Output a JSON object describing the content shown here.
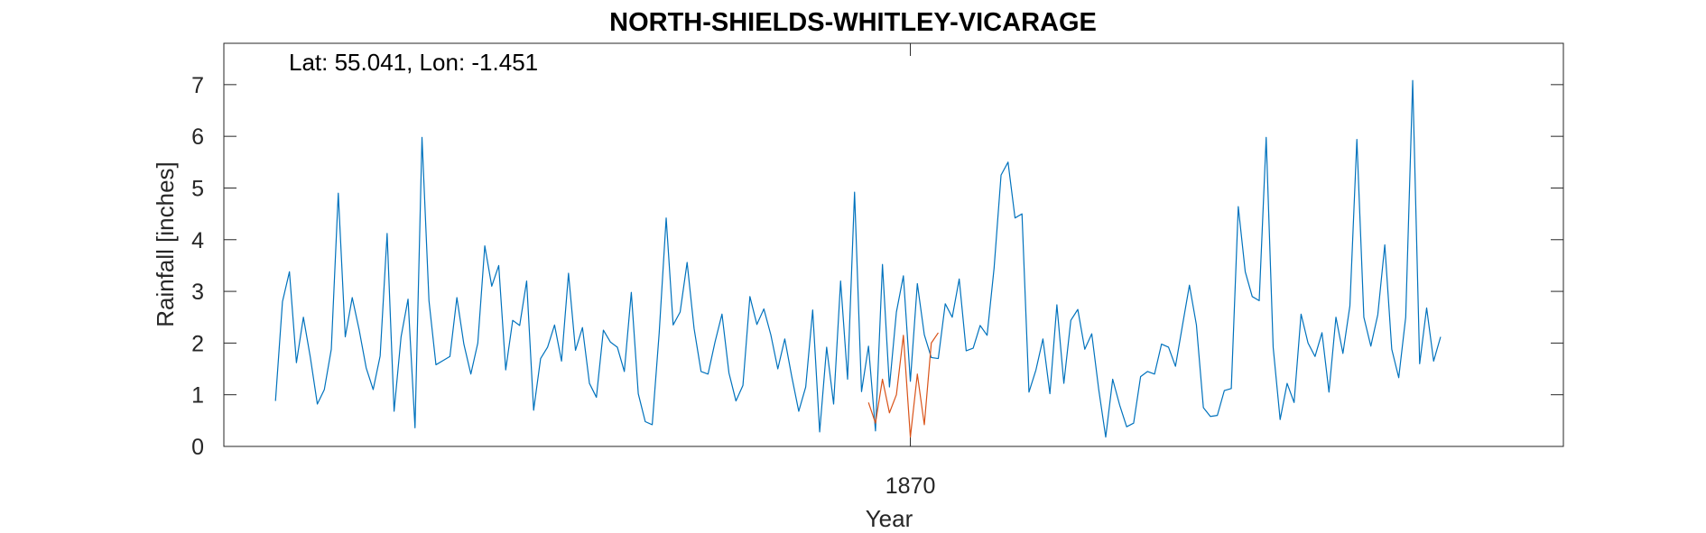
{
  "chart_data": {
    "type": "line",
    "title": "NORTH-SHIELDS-WHITLEY-VICARAGE",
    "xlabel": "Year",
    "ylabel": "Rainfall [inches]",
    "annotation": "Lat: 55.041, Lon: -1.451",
    "xlim": [
      1861.8,
      1877.8
    ],
    "ylim": [
      0,
      7.8
    ],
    "x_ticks": [
      1870
    ],
    "x_tick_labels": [
      "1870"
    ],
    "y_ticks": [
      0,
      1,
      2,
      3,
      4,
      5,
      6,
      7
    ],
    "y_tick_labels": [
      "0",
      "1",
      "2",
      "3",
      "4",
      "5",
      "6",
      "7"
    ],
    "grid": false,
    "colors": {
      "series_1": "#0072BD",
      "series_2": "#D95319"
    },
    "series": [
      {
        "x_start": 1862.4167,
        "x_step": 0.0833333,
        "values": [
          0.88,
          2.8,
          3.38,
          1.62,
          2.5,
          1.72,
          0.82,
          1.1,
          1.88,
          4.9,
          2.12,
          2.88,
          2.25,
          1.52,
          1.1,
          1.75,
          4.12,
          0.68,
          2.12,
          2.85,
          0.36,
          5.98,
          2.82,
          1.58,
          1.66,
          1.74,
          2.88,
          1.98,
          1.4,
          2.0,
          3.88,
          3.1,
          3.5,
          1.48,
          2.44,
          2.34,
          3.2,
          0.7,
          1.7,
          1.92,
          2.35,
          1.65,
          3.35,
          1.86,
          2.3,
          1.22,
          0.95,
          2.25,
          2.02,
          1.92,
          1.45,
          2.98,
          1.02,
          0.48,
          0.42,
          2.2,
          4.42,
          2.35,
          2.6,
          3.56,
          2.28,
          1.45,
          1.4,
          2.02,
          2.56,
          1.42,
          0.88,
          1.18,
          2.9,
          2.36,
          2.66,
          2.16,
          1.5,
          2.08,
          1.35,
          0.68,
          1.15,
          2.64,
          0.28,
          1.92,
          0.82,
          3.2,
          1.3,
          4.92,
          1.06,
          1.94,
          0.3,
          3.52,
          1.15,
          2.6,
          3.3,
          1.26,
          3.15,
          2.16,
          1.72,
          1.7,
          2.76,
          2.5,
          3.24,
          1.85,
          1.9,
          2.34,
          2.15,
          3.45,
          5.25,
          5.5,
          4.42,
          4.5,
          1.05,
          1.48,
          2.08,
          1.02,
          2.74,
          1.22,
          2.44,
          2.65,
          1.88,
          2.18,
          1.1,
          0.18,
          1.3,
          0.8,
          0.38,
          0.45,
          1.35,
          1.45,
          1.4,
          1.98,
          1.92,
          1.55,
          2.34,
          3.12,
          2.35,
          0.75,
          0.58,
          0.6,
          1.08,
          1.12,
          4.64,
          3.38,
          2.9,
          2.82,
          5.98,
          1.92,
          0.52,
          1.22,
          0.85,
          2.56,
          2.0,
          1.74,
          2.2,
          1.05,
          2.5,
          1.8,
          2.72,
          5.94,
          2.5,
          1.94,
          2.55,
          3.9,
          1.88,
          1.33,
          2.5,
          7.08,
          1.6,
          2.68,
          1.65,
          2.12
        ]
      },
      {
        "x_start": 1869.5,
        "x_step": 0.0833333,
        "values": [
          0.85,
          0.45,
          1.3,
          0.65,
          1.0,
          2.15,
          0.18,
          1.4,
          0.42,
          2.0,
          2.2
        ]
      }
    ]
  }
}
